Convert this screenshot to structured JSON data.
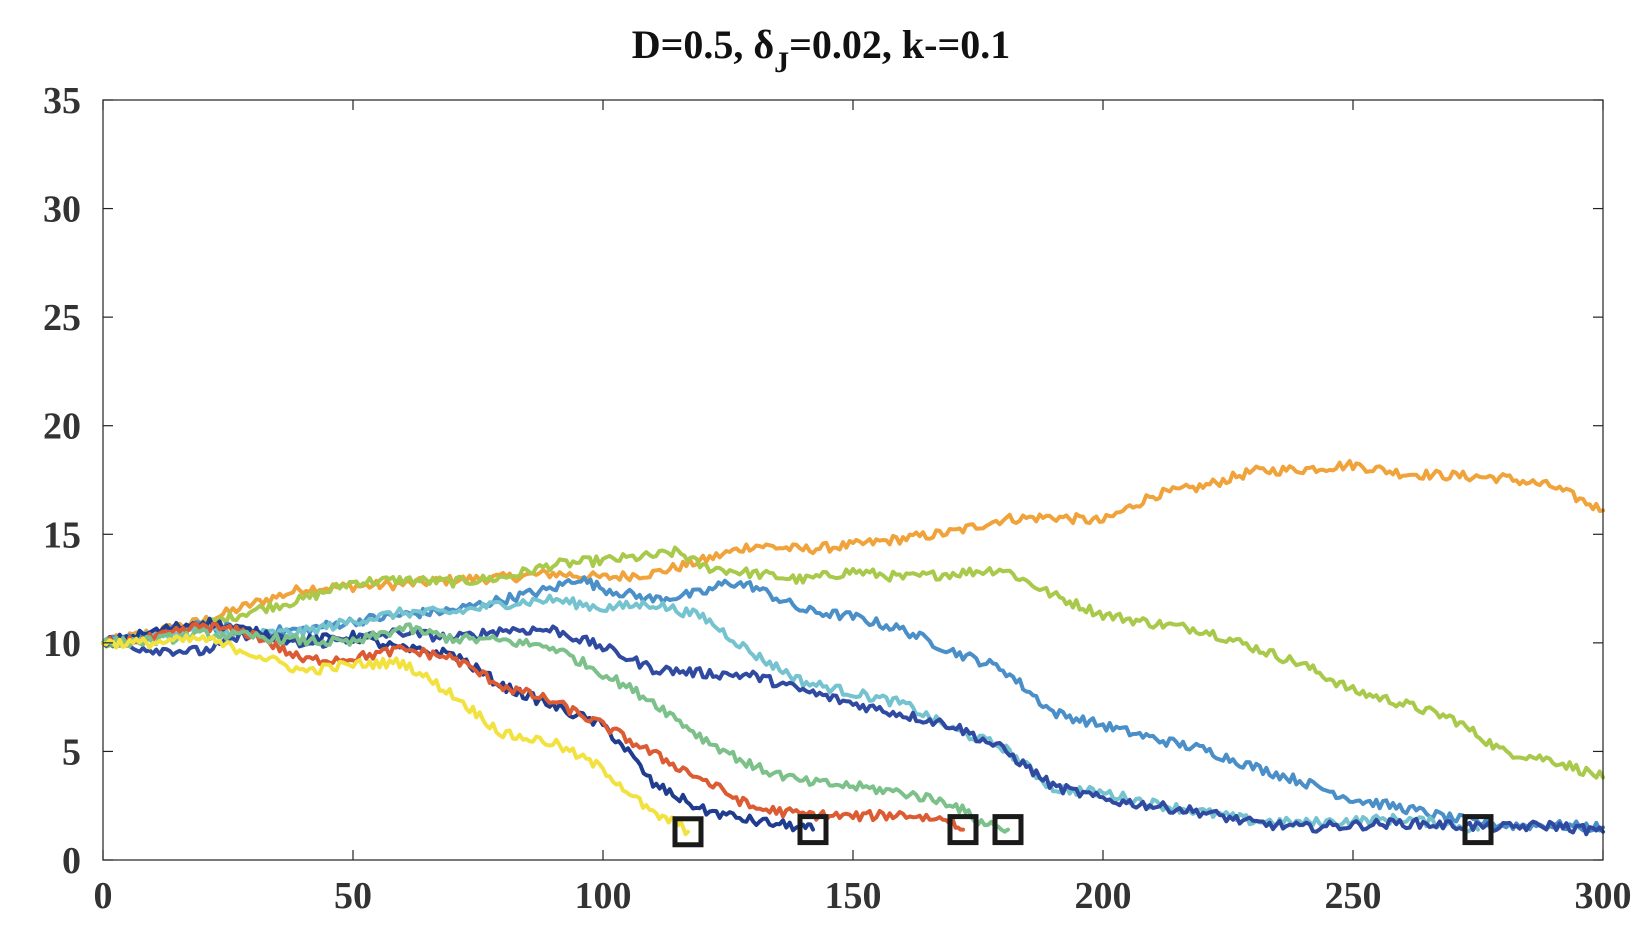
{
  "chart_data": {
    "type": "line",
    "title": "D=0.5,  δJ=0.02, k-=0.1",
    "title_parts": {
      "prefix": "D=0.5,  δ",
      "subscript": "J",
      "suffix": "=0.02, k-=0.1"
    },
    "xlabel": "",
    "ylabel": "",
    "xlim": [
      0,
      300
    ],
    "ylim": [
      0,
      35
    ],
    "xticks": [
      0,
      50,
      100,
      150,
      200,
      250,
      300
    ],
    "yticks": [
      0,
      5,
      10,
      15,
      20,
      25,
      30,
      35
    ],
    "grid": false,
    "legend": "none",
    "series": [
      {
        "color": "#f0a33a",
        "values": [
          [
            0,
            10
          ],
          [
            10,
            10.5
          ],
          [
            20,
            11
          ],
          [
            30,
            11.8
          ],
          [
            40,
            12.5
          ],
          [
            50,
            12.6
          ],
          [
            60,
            12.7
          ],
          [
            70,
            12.9
          ],
          [
            80,
            13
          ],
          [
            90,
            13.2
          ],
          [
            100,
            13
          ],
          [
            110,
            13.2
          ],
          [
            120,
            13.8
          ],
          [
            130,
            14.5
          ],
          [
            140,
            14.3
          ],
          [
            150,
            14.5
          ],
          [
            160,
            14.8
          ],
          [
            170,
            15.1
          ],
          [
            180,
            15.7
          ],
          [
            190,
            15.8
          ],
          [
            200,
            15.6
          ],
          [
            210,
            16.8
          ],
          [
            220,
            17.2
          ],
          [
            230,
            17.9
          ],
          [
            240,
            18
          ],
          [
            250,
            18.2
          ],
          [
            260,
            17.8
          ],
          [
            270,
            17.7
          ],
          [
            280,
            17.6
          ],
          [
            290,
            17.2
          ],
          [
            300,
            16.1
          ]
        ]
      },
      {
        "color": "#a8c94a",
        "values": [
          [
            0,
            10
          ],
          [
            10,
            10.3
          ],
          [
            20,
            10.8
          ],
          [
            30,
            11.5
          ],
          [
            40,
            12
          ],
          [
            50,
            12.8
          ],
          [
            60,
            12.9
          ],
          [
            70,
            12.8
          ],
          [
            80,
            13
          ],
          [
            90,
            13.6
          ],
          [
            100,
            13.8
          ],
          [
            110,
            14
          ],
          [
            115,
            14.2
          ],
          [
            120,
            13.5
          ],
          [
            130,
            13.2
          ],
          [
            140,
            12.9
          ],
          [
            150,
            13.3
          ],
          [
            160,
            13
          ],
          [
            170,
            13.2
          ],
          [
            180,
            13.4
          ],
          [
            190,
            12.2
          ],
          [
            200,
            11.3
          ],
          [
            210,
            10.9
          ],
          [
            220,
            10.6
          ],
          [
            230,
            9.8
          ],
          [
            240,
            9
          ],
          [
            250,
            7.8
          ],
          [
            260,
            7.2
          ],
          [
            270,
            6.5
          ],
          [
            280,
            5
          ],
          [
            290,
            4.6
          ],
          [
            300,
            3.8
          ]
        ]
      },
      {
        "color": "#4a8fc8",
        "values": [
          [
            0,
            10
          ],
          [
            10,
            10.4
          ],
          [
            20,
            10.8
          ],
          [
            30,
            10.5
          ],
          [
            40,
            10.6
          ],
          [
            50,
            11
          ],
          [
            60,
            11.3
          ],
          [
            70,
            11.5
          ],
          [
            80,
            12
          ],
          [
            90,
            12.5
          ],
          [
            95,
            13
          ],
          [
            100,
            12.5
          ],
          [
            110,
            12
          ],
          [
            120,
            12.3
          ],
          [
            125,
            12.8
          ],
          [
            130,
            12.6
          ],
          [
            140,
            11.5
          ],
          [
            150,
            11.2
          ],
          [
            160,
            10.6
          ],
          [
            170,
            9.6
          ],
          [
            180,
            8.8
          ],
          [
            190,
            6.8
          ],
          [
            200,
            6.2
          ],
          [
            210,
            5.6
          ],
          [
            220,
            5.1
          ],
          [
            230,
            4.3
          ],
          [
            240,
            3.6
          ],
          [
            250,
            2.8
          ],
          [
            260,
            2.4
          ],
          [
            270,
            1.9
          ],
          [
            280,
            1.6
          ],
          [
            290,
            1.6
          ],
          [
            300,
            1.5
          ]
        ]
      },
      {
        "color": "#76c3d0",
        "values": [
          [
            0,
            10
          ],
          [
            10,
            10.3
          ],
          [
            20,
            10.6
          ],
          [
            30,
            10.4
          ],
          [
            40,
            10.5
          ],
          [
            50,
            11
          ],
          [
            60,
            11.4
          ],
          [
            70,
            11.4
          ],
          [
            80,
            11.8
          ],
          [
            90,
            12
          ],
          [
            100,
            11.6
          ],
          [
            110,
            11.8
          ],
          [
            120,
            11.2
          ],
          [
            130,
            9.5
          ],
          [
            140,
            8.2
          ],
          [
            150,
            7.7
          ],
          [
            160,
            7.2
          ],
          [
            170,
            6
          ],
          [
            180,
            5.2
          ],
          [
            190,
            3.3
          ],
          [
            200,
            3.1
          ],
          [
            210,
            2.6
          ],
          [
            220,
            2.2
          ],
          [
            230,
            1.8
          ],
          [
            240,
            1.7
          ],
          [
            250,
            1.8
          ],
          [
            260,
            1.9
          ],
          [
            270,
            1.6
          ],
          [
            275,
            1.4
          ]
        ]
      },
      {
        "color": "#2f4aa0",
        "values": [
          [
            0,
            10
          ],
          [
            10,
            9.7
          ],
          [
            20,
            9.6
          ],
          [
            30,
            10.5
          ],
          [
            40,
            9.9
          ],
          [
            50,
            10.2
          ],
          [
            60,
            10.5
          ],
          [
            70,
            10.2
          ],
          [
            80,
            10.6
          ],
          [
            90,
            10.6
          ],
          [
            100,
            9.8
          ],
          [
            110,
            8.8
          ],
          [
            120,
            8.6
          ],
          [
            130,
            8.5
          ],
          [
            140,
            7.8
          ],
          [
            150,
            7.2
          ],
          [
            160,
            6.7
          ],
          [
            170,
            6.2
          ],
          [
            180,
            5.1
          ],
          [
            190,
            3.4
          ],
          [
            200,
            2.8
          ],
          [
            210,
            2.5
          ],
          [
            220,
            2.2
          ],
          [
            230,
            1.7
          ],
          [
            240,
            1.5
          ],
          [
            250,
            1.6
          ],
          [
            260,
            1.7
          ],
          [
            270,
            1.6
          ],
          [
            280,
            1.5
          ],
          [
            290,
            1.6
          ],
          [
            300,
            1.3
          ]
        ]
      },
      {
        "color": "#1f3c8f",
        "values": [
          [
            0,
            10
          ],
          [
            10,
            10.5
          ],
          [
            20,
            11
          ],
          [
            30,
            10.5
          ],
          [
            40,
            10.1
          ],
          [
            50,
            10.3
          ],
          [
            60,
            9.7
          ],
          [
            70,
            9.5
          ],
          [
            80,
            8
          ],
          [
            90,
            7.1
          ],
          [
            100,
            6.2
          ],
          [
            105,
            5
          ],
          [
            110,
            3.5
          ],
          [
            120,
            2.3
          ],
          [
            130,
            1.8
          ],
          [
            140,
            1.5
          ],
          [
            142,
            1.4
          ]
        ]
      },
      {
        "color": "#dc5b33",
        "values": [
          [
            0,
            10
          ],
          [
            10,
            10.2
          ],
          [
            20,
            10.8
          ],
          [
            30,
            10.4
          ],
          [
            40,
            9.2
          ],
          [
            50,
            9.3
          ],
          [
            60,
            9.7
          ],
          [
            70,
            9.3
          ],
          [
            80,
            8
          ],
          [
            90,
            7.3
          ],
          [
            100,
            6.2
          ],
          [
            110,
            4.9
          ],
          [
            120,
            3.7
          ],
          [
            130,
            2.4
          ],
          [
            140,
            2.1
          ],
          [
            150,
            2
          ],
          [
            160,
            2.1
          ],
          [
            170,
            1.8
          ],
          [
            172,
            1.4
          ]
        ]
      },
      {
        "color": "#7cc08a",
        "values": [
          [
            0,
            10
          ],
          [
            10,
            10.1
          ],
          [
            20,
            10.4
          ],
          [
            30,
            10.3
          ],
          [
            40,
            10.1
          ],
          [
            50,
            10
          ],
          [
            60,
            10.7
          ],
          [
            70,
            10.2
          ],
          [
            80,
            10.1
          ],
          [
            90,
            9.8
          ],
          [
            100,
            8.6
          ],
          [
            110,
            7.3
          ],
          [
            120,
            5.6
          ],
          [
            130,
            4.3
          ],
          [
            140,
            3.6
          ],
          [
            150,
            3.4
          ],
          [
            160,
            3.1
          ],
          [
            170,
            2.6
          ],
          [
            175,
            1.8
          ],
          [
            181,
            1.4
          ]
        ]
      },
      {
        "color": "#f2e23f",
        "values": [
          [
            0,
            10
          ],
          [
            10,
            10
          ],
          [
            20,
            10.2
          ],
          [
            30,
            9.5
          ],
          [
            40,
            8.7
          ],
          [
            50,
            9
          ],
          [
            60,
            9.1
          ],
          [
            70,
            7.6
          ],
          [
            80,
            5.8
          ],
          [
            90,
            5.4
          ],
          [
            100,
            4.2
          ],
          [
            110,
            2.1
          ],
          [
            115,
            1.7
          ],
          [
            117,
            1.3
          ]
        ]
      }
    ],
    "markers": [
      [
        117,
        1.3
      ],
      [
        142,
        1.4
      ],
      [
        172,
        1.4
      ],
      [
        181,
        1.4
      ],
      [
        275,
        1.4
      ]
    ]
  }
}
